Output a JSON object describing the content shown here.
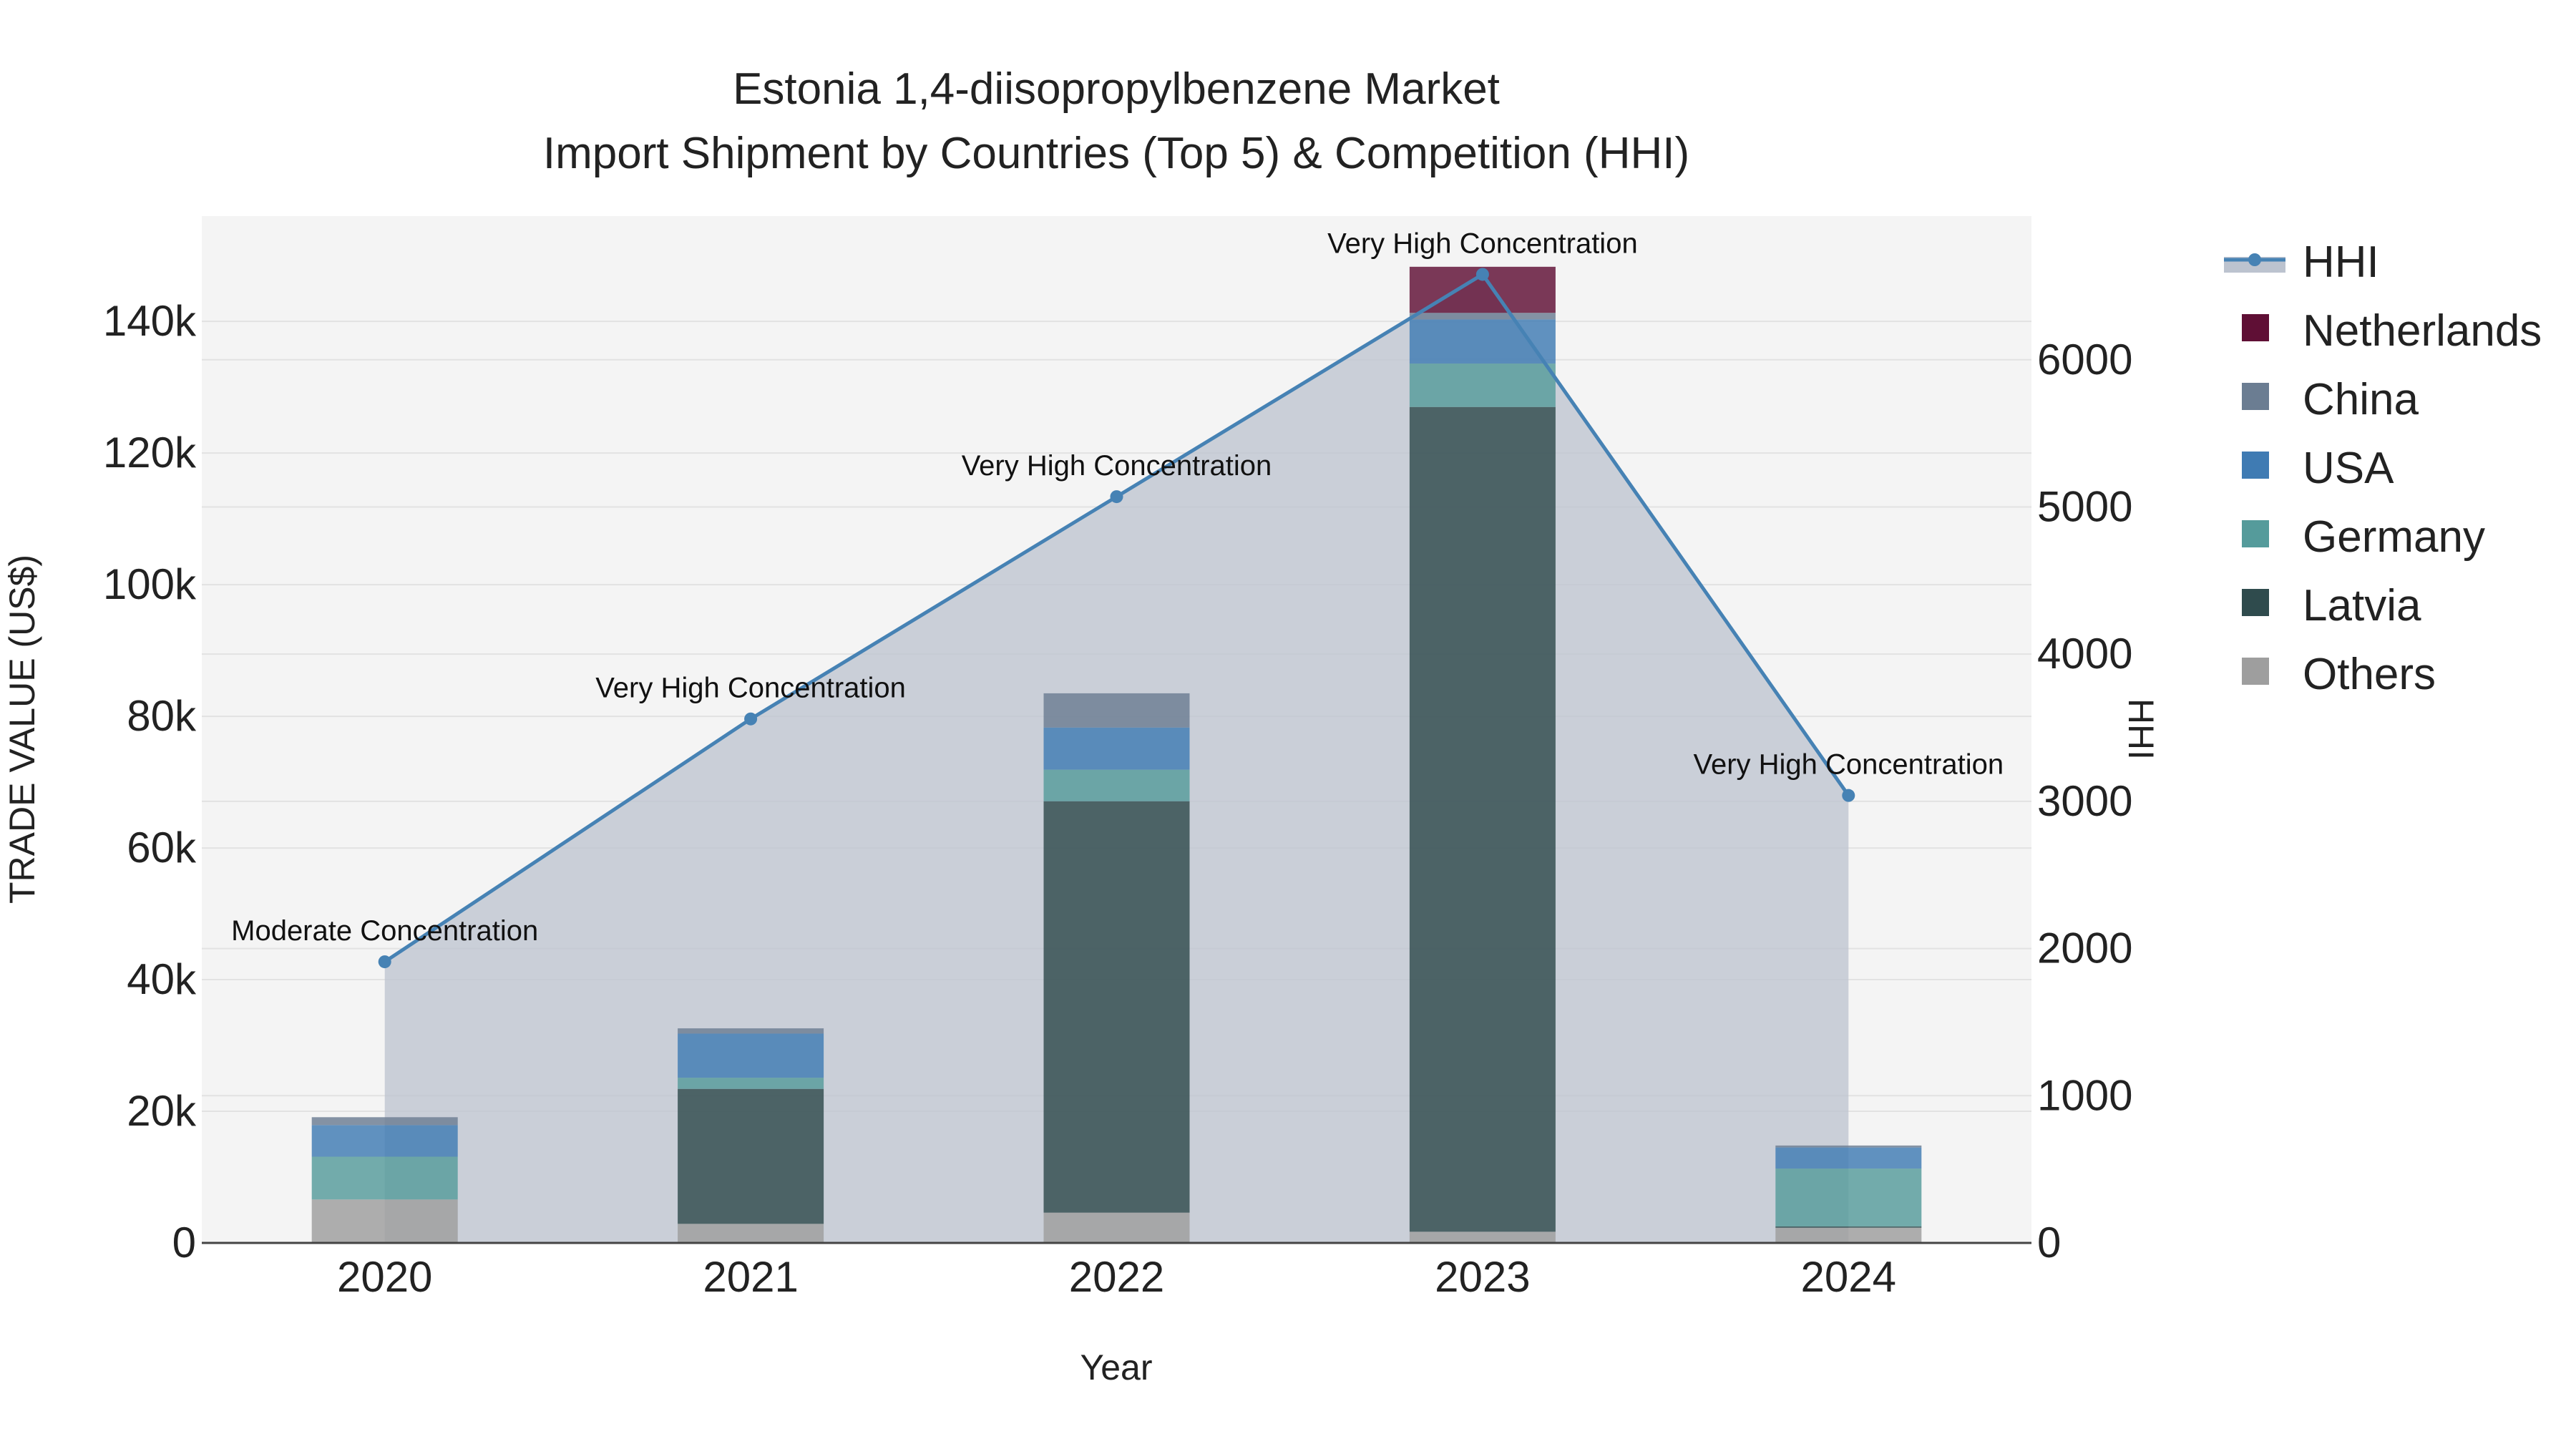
{
  "chart_data": {
    "type": "bar",
    "title_line1": "Estonia 1,4-diisopropylbenzene Market",
    "title_line2": "Import Shipment by Countries (Top 5) & Competition (HHI)",
    "xlabel": "Year",
    "ylabel": "TRADE VALUE (US$)",
    "y2label": "HHI",
    "categories": [
      "2020",
      "2021",
      "2022",
      "2023",
      "2024"
    ],
    "ylim": [
      0,
      156000
    ],
    "y2lim": [
      0,
      6976
    ],
    "yticks": [
      0,
      20000,
      40000,
      60000,
      80000,
      100000,
      120000,
      140000
    ],
    "ytick_labels": [
      "0",
      "20k",
      "40k",
      "60k",
      "80k",
      "100k",
      "120k",
      "140k"
    ],
    "y2ticks": [
      0,
      1000,
      2000,
      3000,
      4000,
      5000,
      6000
    ],
    "y2tick_labels": [
      "0",
      "1000",
      "2000",
      "3000",
      "4000",
      "5000",
      "6000"
    ],
    "stack_order": [
      "Others",
      "Latvia",
      "Germany",
      "USA",
      "China",
      "Netherlands"
    ],
    "series": [
      {
        "name": "Netherlands",
        "color": "#5f0f35",
        "values": [
          0,
          0,
          0,
          7000,
          0
        ]
      },
      {
        "name": "China",
        "color": "#6b7d92",
        "values": [
          1200,
          800,
          5200,
          1000,
          300
        ]
      },
      {
        "name": "USA",
        "color": "#3f7bb3",
        "values": [
          4800,
          6700,
          6400,
          6700,
          3200
        ]
      },
      {
        "name": "Germany",
        "color": "#559b9b",
        "values": [
          6500,
          1700,
          4800,
          6600,
          8800
        ]
      },
      {
        "name": "Latvia",
        "color": "#2f4b4d",
        "values": [
          0,
          20500,
          62500,
          125300,
          200
        ]
      },
      {
        "name": "Others",
        "color": "#9e9e9e",
        "values": [
          6600,
          2900,
          4600,
          1700,
          2300
        ]
      }
    ],
    "hhi": {
      "name": "HHI",
      "color": "#4682b4",
      "values": [
        1910,
        3560,
        5070,
        6580,
        3040
      ],
      "labels": [
        "Moderate Concentration",
        "Very High Concentration",
        "Very High Concentration",
        "Very High Concentration",
        "Very High Concentration"
      ]
    },
    "legend": [
      "HHI",
      "Netherlands",
      "China",
      "USA",
      "Germany",
      "Latvia",
      "Others"
    ],
    "legend_position": "top-right",
    "grid": true
  }
}
